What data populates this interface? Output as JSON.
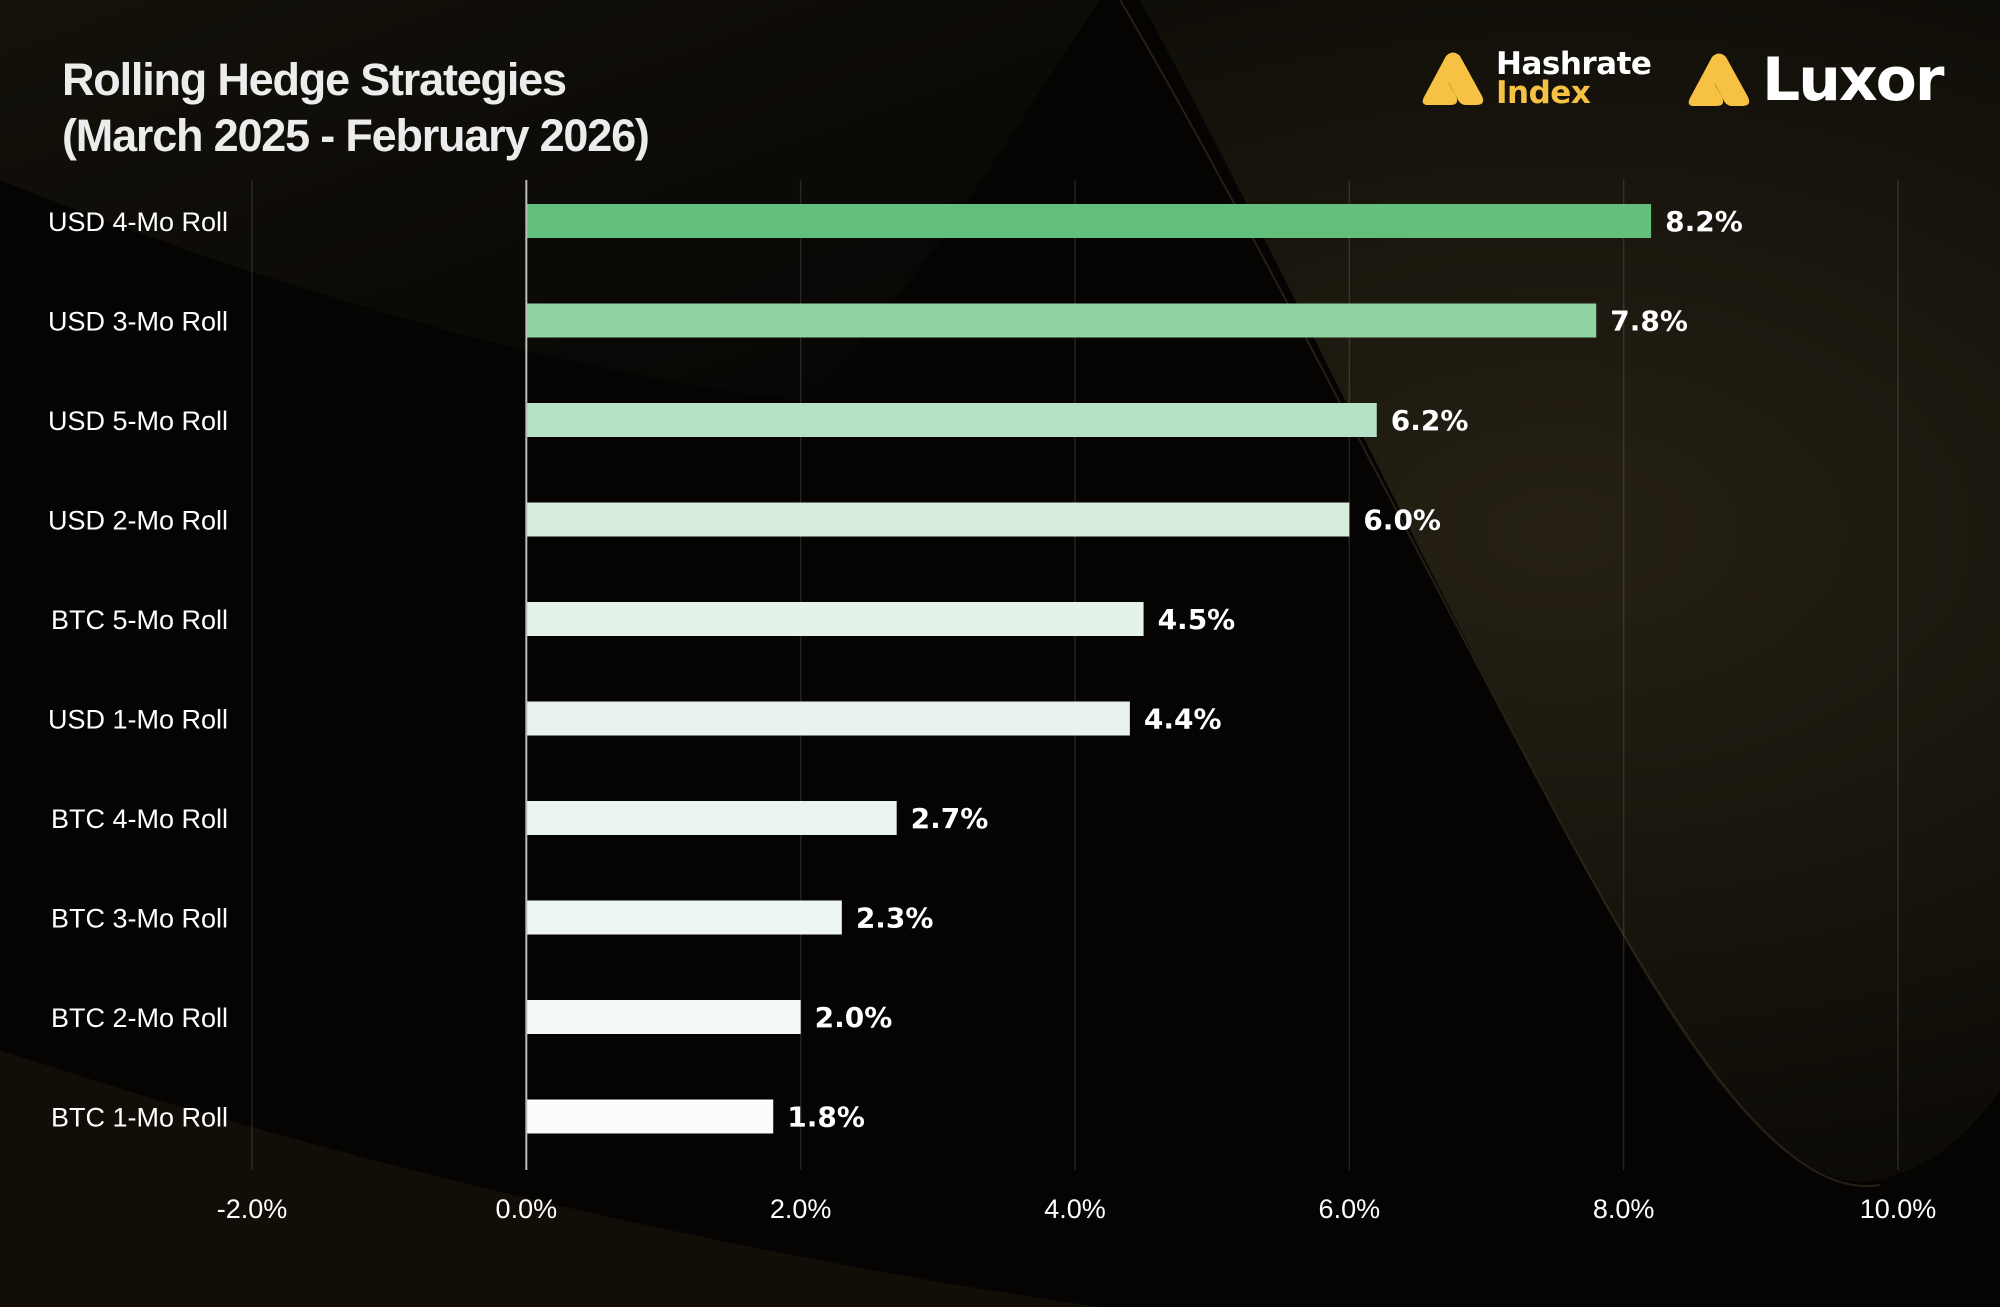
{
  "header": {
    "title_line1": "Rolling Hedge Strategies",
    "title_line2": "(March  2025 - February 2026)"
  },
  "logos": {
    "hashrate_index": {
      "line1": "Hashrate",
      "line2": "Index",
      "icon": "triangle-logo-icon"
    },
    "luxor": {
      "text": "Luxor",
      "icon": "triangle-logo-icon"
    },
    "brand_yellow": "#f7c244"
  },
  "chart_data": {
    "type": "bar",
    "orientation": "horizontal",
    "title": "Rolling Hedge Strategies (March  2025 - February 2026)",
    "xlabel": "",
    "ylabel": "",
    "categories": [
      "USD 4-Mo Roll",
      "USD 3-Mo Roll",
      "USD 5-Mo Roll",
      "USD 2-Mo Roll",
      "BTC 5-Mo Roll",
      "USD 1-Mo Roll",
      "BTC 4-Mo Roll",
      "BTC 3-Mo Roll",
      "BTC 2-Mo Roll",
      "BTC 1-Mo Roll"
    ],
    "values": [
      8.2,
      7.8,
      6.2,
      6.0,
      4.5,
      4.4,
      2.7,
      2.3,
      2.0,
      1.8
    ],
    "value_labels": [
      "8.2%",
      "7.8%",
      "6.2%",
      "6.0%",
      "4.5%",
      "4.4%",
      "2.7%",
      "2.3%",
      "2.0%",
      "1.8%"
    ],
    "bar_colors": [
      "#63bf7c",
      "#90d3a0",
      "#b5e1c6",
      "#d6ecdd",
      "#e4f2ea",
      "#e7f3ec",
      "#eaf4ee",
      "#eef6f1",
      "#f3f8f5",
      "#fbfcfd"
    ],
    "xlim": [
      -2.0,
      10.0
    ],
    "xticks": [
      -2.0,
      0.0,
      2.0,
      4.0,
      6.0,
      8.0,
      10.0
    ],
    "xtick_labels": [
      "-2.0%",
      "0.0%",
      "2.0%",
      "4.0%",
      "6.0%",
      "8.0%",
      "10.0%"
    ],
    "grid": true,
    "legend": "none"
  }
}
